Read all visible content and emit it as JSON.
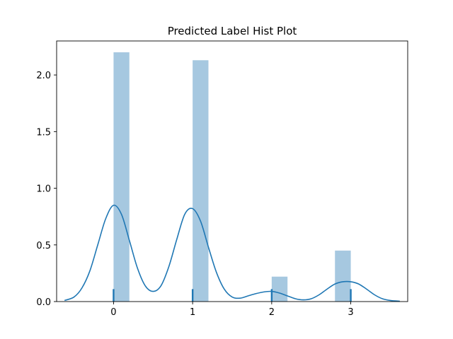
{
  "chart_data": {
    "type": "bar",
    "title": "Predicted Label Hist Plot",
    "xlabel": "",
    "ylabel": "",
    "xlim": [
      -0.72,
      3.72
    ],
    "ylim": [
      0,
      2.3
    ],
    "x_ticks": [
      0,
      1,
      2,
      3
    ],
    "y_ticks": [
      0.0,
      0.5,
      1.0,
      1.5,
      2.0
    ],
    "y_tick_labels": [
      "0.0",
      "0.5",
      "1.0",
      "1.5",
      "2.0"
    ],
    "grid": false,
    "bar_color": "#a6c8e0",
    "line_color": "#1f77b4",
    "histogram": {
      "bins": [
        {
          "x0": 0.0,
          "x1": 0.2,
          "value": 2.2
        },
        {
          "x0": 1.0,
          "x1": 1.2,
          "value": 2.13
        },
        {
          "x0": 2.0,
          "x1": 2.2,
          "value": 0.22
        },
        {
          "x0": 2.8,
          "x1": 3.0,
          "value": 0.45
        }
      ]
    },
    "kde": {
      "x": [
        -0.62,
        -0.5,
        -0.4,
        -0.3,
        -0.2,
        -0.1,
        0.0,
        0.1,
        0.2,
        0.3,
        0.4,
        0.5,
        0.6,
        0.7,
        0.8,
        0.9,
        1.0,
        1.1,
        1.2,
        1.3,
        1.4,
        1.5,
        1.6,
        1.7,
        1.8,
        1.9,
        2.0,
        2.1,
        2.2,
        2.3,
        2.4,
        2.5,
        2.6,
        2.7,
        2.8,
        2.9,
        3.0,
        3.1,
        3.2,
        3.3,
        3.4,
        3.5,
        3.62
      ],
      "y": [
        0.01,
        0.04,
        0.12,
        0.27,
        0.5,
        0.73,
        0.85,
        0.77,
        0.54,
        0.3,
        0.14,
        0.09,
        0.14,
        0.31,
        0.55,
        0.77,
        0.82,
        0.71,
        0.48,
        0.26,
        0.11,
        0.04,
        0.03,
        0.05,
        0.07,
        0.085,
        0.09,
        0.075,
        0.05,
        0.025,
        0.015,
        0.025,
        0.06,
        0.11,
        0.155,
        0.175,
        0.175,
        0.155,
        0.11,
        0.06,
        0.025,
        0.01,
        0.003
      ]
    },
    "rug": {
      "values": [
        0,
        1,
        2,
        3
      ],
      "height": 0.11
    }
  }
}
